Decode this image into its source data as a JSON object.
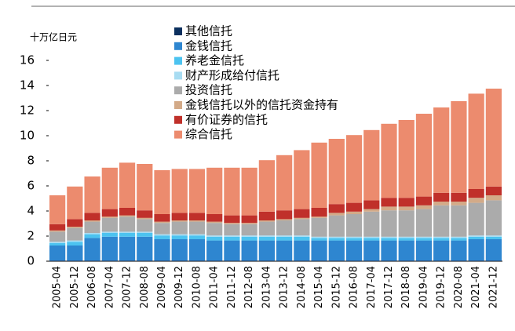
{
  "chart_data": {
    "type": "stacked_bar",
    "y_label": "十万亿日元",
    "categories": [
      "2005-04",
      "2005-12",
      "2006-08",
      "2007-04",
      "2007-12",
      "2008-08",
      "2009-04",
      "2009-12",
      "2010-08",
      "2011-04",
      "2011-12",
      "2012-08",
      "2013-04",
      "2013-12",
      "2014-08",
      "2015-04",
      "2015-12",
      "2016-08",
      "2017-04",
      "2017-12",
      "2018-08",
      "2019-04",
      "2019-12",
      "2020-08",
      "2021-04",
      "2021-12"
    ],
    "series": [
      {
        "name": "其他信托",
        "color": "#0b2f5e",
        "values": [
          0.05,
          0.05,
          0.05,
          0.05,
          0.05,
          0.05,
          0.05,
          0.05,
          0.05,
          0.05,
          0.05,
          0.05,
          0.05,
          0.05,
          0.05,
          0.05,
          0.05,
          0.05,
          0.05,
          0.05,
          0.05,
          0.05,
          0.05,
          0.05,
          0.05,
          0.05
        ]
      },
      {
        "name": "金钱信托",
        "color": "#2e86d0",
        "values": [
          1.2,
          1.2,
          1.8,
          1.9,
          1.9,
          1.9,
          1.7,
          1.7,
          1.7,
          1.6,
          1.6,
          1.6,
          1.6,
          1.6,
          1.6,
          1.6,
          1.6,
          1.6,
          1.6,
          1.6,
          1.6,
          1.6,
          1.6,
          1.6,
          1.7,
          1.7
        ]
      },
      {
        "name": "养老金信托",
        "color": "#4cc3f0",
        "values": [
          0.2,
          0.3,
          0.3,
          0.3,
          0.3,
          0.3,
          0.3,
          0.3,
          0.3,
          0.3,
          0.3,
          0.3,
          0.3,
          0.3,
          0.3,
          0.2,
          0.2,
          0.2,
          0.2,
          0.2,
          0.2,
          0.2,
          0.2,
          0.2,
          0.2,
          0.2
        ]
      },
      {
        "name": "财产形成给付信托",
        "color": "#a8dcf2",
        "values": [
          0.1,
          0.1,
          0.1,
          0.1,
          0.1,
          0.1,
          0.1,
          0.1,
          0.1,
          0.1,
          0.1,
          0.1,
          0.1,
          0.1,
          0.1,
          0.1,
          0.1,
          0.1,
          0.1,
          0.1,
          0.1,
          0.1,
          0.1,
          0.1,
          0.1,
          0.1
        ]
      },
      {
        "name": "投资信托",
        "color": "#ababab",
        "values": [
          0.8,
          1.0,
          0.9,
          1.1,
          1.2,
          1.0,
          0.9,
          1.0,
          1.0,
          1.0,
          0.9,
          0.9,
          1.1,
          1.2,
          1.3,
          1.5,
          1.7,
          1.8,
          2.0,
          2.1,
          2.1,
          2.2,
          2.5,
          2.5,
          2.6,
          2.8
        ]
      },
      {
        "name": "金钱信托以外的信托资金持有",
        "color": "#d3aa88",
        "values": [
          0.1,
          0.1,
          0.1,
          0.1,
          0.1,
          0.1,
          0.1,
          0.1,
          0.1,
          0.1,
          0.1,
          0.1,
          0.1,
          0.1,
          0.1,
          0.1,
          0.2,
          0.2,
          0.2,
          0.3,
          0.3,
          0.3,
          0.3,
          0.3,
          0.4,
          0.4
        ]
      },
      {
        "name": "有价证券的信托",
        "color": "#c0302a",
        "values": [
          0.5,
          0.6,
          0.6,
          0.6,
          0.6,
          0.6,
          0.6,
          0.6,
          0.6,
          0.6,
          0.6,
          0.6,
          0.7,
          0.7,
          0.7,
          0.7,
          0.7,
          0.7,
          0.7,
          0.7,
          0.7,
          0.7,
          0.7,
          0.7,
          0.7,
          0.7
        ]
      },
      {
        "name": "综合信托",
        "color": "#ec8b6e",
        "values": [
          2.3,
          2.6,
          2.9,
          3.3,
          3.6,
          3.7,
          3.5,
          3.5,
          3.5,
          3.7,
          3.8,
          3.8,
          4.1,
          4.4,
          4.7,
          5.2,
          5.2,
          5.4,
          5.6,
          5.9,
          6.2,
          6.6,
          6.8,
          7.3,
          7.6,
          7.8
        ]
      }
    ],
    "ylim": [
      0,
      16
    ],
    "yticks": [
      0,
      2,
      4,
      6,
      8,
      10,
      12,
      14,
      16
    ]
  }
}
